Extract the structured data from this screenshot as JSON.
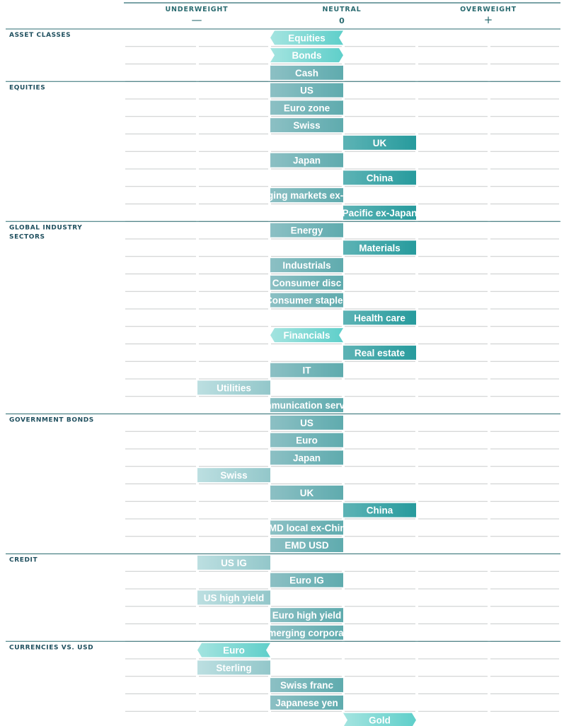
{
  "chart_data": {
    "type": "bar",
    "scale": {
      "labels": [
        "UNDERWEIGHT",
        "NEUTRAL",
        "OVERWEIGHT"
      ],
      "symbols": [
        "—",
        "0",
        "+"
      ]
    },
    "colors": {
      "neutral": "#74b3b8",
      "overweight": "#3fa3a6",
      "underweight": "#a8d3d6",
      "chevron": "#7dd6d2",
      "rule": "#2a6b70",
      "grid": "#c9cccc",
      "section_text": "#1f4f5e"
    },
    "sections": [
      {
        "label": "ASSET CLASSES",
        "items": [
          {
            "name": "Equities",
            "from": 0,
            "to": 1,
            "shape": "chevron-left"
          },
          {
            "name": "Bonds",
            "from": 0,
            "to": 1,
            "shape": "chevron-right"
          },
          {
            "name": "Cash",
            "from": 0,
            "to": 1,
            "shape": "bar"
          }
        ]
      },
      {
        "label": "EQUITIES",
        "items": [
          {
            "name": "US",
            "from": 0,
            "to": 1,
            "shape": "bar"
          },
          {
            "name": "Euro zone",
            "from": 0,
            "to": 1,
            "shape": "bar"
          },
          {
            "name": "Swiss",
            "from": 0,
            "to": 1,
            "shape": "bar"
          },
          {
            "name": "UK",
            "from": 1,
            "to": 2,
            "shape": "bar"
          },
          {
            "name": "Japan",
            "from": 0,
            "to": 1,
            "shape": "bar"
          },
          {
            "name": "China",
            "from": 1,
            "to": 2,
            "shape": "bar"
          },
          {
            "name": "Emerging markets ex-China",
            "from": 0,
            "to": 1,
            "shape": "bar"
          },
          {
            "name": "Pacific ex-Japan",
            "from": 1,
            "to": 2,
            "shape": "bar"
          }
        ]
      },
      {
        "label": "GLOBAL INDUSTRY SECTORS",
        "label_lines": [
          "GLOBAL INDUSTRY",
          "SECTORS"
        ],
        "items": [
          {
            "name": "Energy",
            "from": 0,
            "to": 1,
            "shape": "bar"
          },
          {
            "name": "Materials",
            "from": 1,
            "to": 2,
            "shape": "bar"
          },
          {
            "name": "Industrials",
            "from": 0,
            "to": 1,
            "shape": "bar"
          },
          {
            "name": "Consumer disc",
            "from": 0,
            "to": 1,
            "shape": "bar"
          },
          {
            "name": "Consumer staples",
            "from": 0,
            "to": 1,
            "shape": "bar"
          },
          {
            "name": "Health care",
            "from": 1,
            "to": 2,
            "shape": "bar"
          },
          {
            "name": "Financials",
            "from": 0,
            "to": 1,
            "shape": "chevron-left"
          },
          {
            "name": "Real estate",
            "from": 1,
            "to": 2,
            "shape": "bar"
          },
          {
            "name": "IT",
            "from": 0,
            "to": 1,
            "shape": "bar"
          },
          {
            "name": "Utilities",
            "from": -1,
            "to": 0,
            "shape": "bar"
          },
          {
            "name": "Communication services",
            "from": 0,
            "to": 1,
            "shape": "bar"
          }
        ]
      },
      {
        "label": "GOVERNMENT BONDS",
        "items": [
          {
            "name": "US",
            "from": 0,
            "to": 1,
            "shape": "bar"
          },
          {
            "name": "Euro",
            "from": 0,
            "to": 1,
            "shape": "bar"
          },
          {
            "name": "Japan",
            "from": 0,
            "to": 1,
            "shape": "bar"
          },
          {
            "name": "Swiss",
            "from": -1,
            "to": 0,
            "shape": "bar"
          },
          {
            "name": "UK",
            "from": 0,
            "to": 1,
            "shape": "bar"
          },
          {
            "name": "China",
            "from": 1,
            "to": 2,
            "shape": "bar"
          },
          {
            "name": "EMD local ex-China",
            "from": 0,
            "to": 1,
            "shape": "bar"
          },
          {
            "name": "EMD USD",
            "from": 0,
            "to": 1,
            "shape": "bar"
          }
        ]
      },
      {
        "label": "CREDIT",
        "items": [
          {
            "name": "US IG",
            "from": -1,
            "to": 0,
            "shape": "bar"
          },
          {
            "name": "Euro IG",
            "from": 0,
            "to": 1,
            "shape": "bar"
          },
          {
            "name": "US high yield",
            "from": -1,
            "to": 0,
            "shape": "bar"
          },
          {
            "name": "Euro high yield",
            "from": 0,
            "to": 1,
            "shape": "bar"
          },
          {
            "name": "Emerging corporate",
            "from": 0,
            "to": 1,
            "shape": "bar"
          }
        ]
      },
      {
        "label": "CURRENCIES VS. USD",
        "items": [
          {
            "name": "Euro",
            "from": -1,
            "to": 0,
            "shape": "chevron-left"
          },
          {
            "name": "Sterling",
            "from": -1,
            "to": 0,
            "shape": "bar"
          },
          {
            "name": "Swiss franc",
            "from": 0,
            "to": 1,
            "shape": "bar"
          },
          {
            "name": "Japanese yen",
            "from": 0,
            "to": 1,
            "shape": "bar"
          },
          {
            "name": "Gold",
            "from": 1,
            "to": 2,
            "shape": "chevron-right"
          }
        ]
      }
    ]
  }
}
